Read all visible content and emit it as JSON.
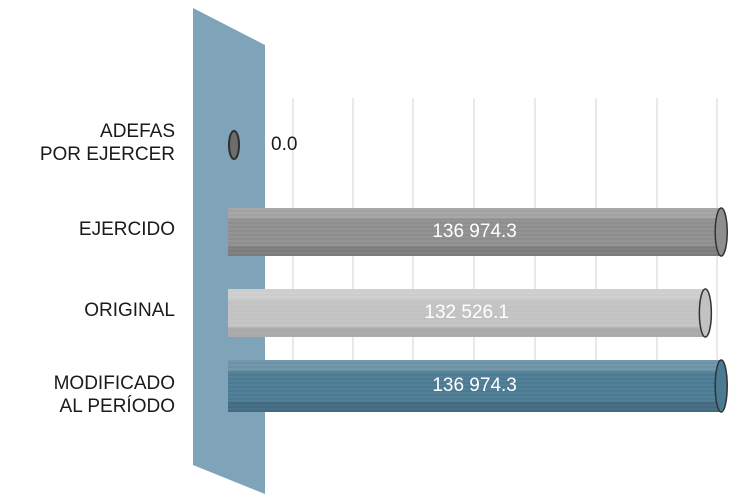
{
  "chart_data": {
    "type": "bar",
    "orientation": "horizontal",
    "style": "3d-cylinder",
    "categories": [
      "ADEFAS\nPOR EJERCER",
      "EJERCIDO",
      "ORIGINAL",
      "MODIFICADO\nAL PERÍODO"
    ],
    "values": [
      0.0,
      136974.3,
      132526.1,
      136974.3
    ],
    "value_labels": [
      "0.0",
      "136 974.3",
      "132 526.1",
      "136 974.3"
    ],
    "bar_colors": [
      "#6d6d6d",
      "#8e8e8e",
      "#c2c2c2",
      "#4b7a93"
    ],
    "wall_color": "#7fa3b8",
    "title": "",
    "xlabel": "",
    "ylabel": "",
    "xlim": [
      0,
      140000
    ],
    "grid": true,
    "legend": "none"
  }
}
